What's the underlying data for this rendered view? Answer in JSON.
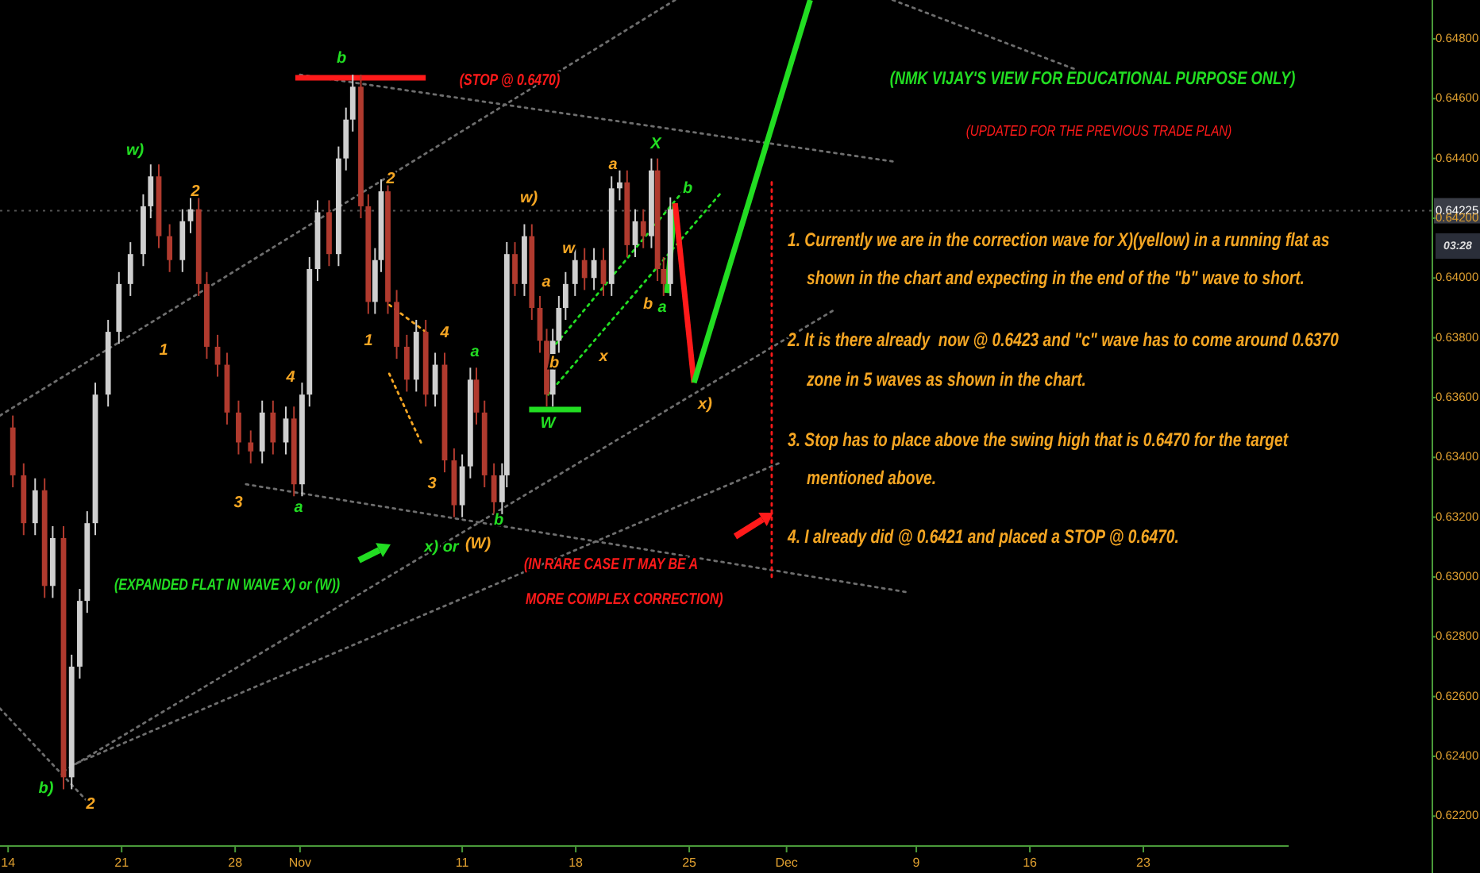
{
  "chart_data": {
    "type": "candlestick",
    "title": "(NMK VIJAY'S VIEW FOR EDUCATIONAL PURPOSE ONLY)",
    "subtitle": "(UPDATED FOR THE PREVIOUS TRADE PLAN)",
    "x": [
      "--10-14T07:00",
      "--10-14T23:00",
      "--10-15T16:00",
      "--10-16T06:00",
      "--10-16T18:00",
      "--10-17T10:00",
      "--10-17T22:00",
      "--10-18T10:00",
      "--10-18T21:00",
      "--10-19T09:00",
      "--10-20T04:00",
      "--10-20T20:00",
      "--10-21T13:00",
      "--10-22T08:00",
      "--10-22T19:00",
      "--10-23T07:00",
      "--10-23T23:00",
      "--10-24T18:00",
      "--10-25T06:00",
      "--10-25T18:00",
      "--10-26T06:00",
      "--10-26T22:00",
      "--10-27T12:00",
      "--10-28T05:00",
      "--10-28T23:00",
      "--10-29T16:00",
      "--10-30T08:00",
      "--10-31T03:00",
      "--10-31T15:00",
      "--11-01T03:00",
      "--11-01T14:00",
      "--11-02T02:00",
      "--11-02T19:00",
      "--11-03T09:00",
      "--11-03T20:00",
      "--11-04T06:00",
      "--11-04T18:00",
      "--11-05T05:00",
      "--11-05T15:00",
      "--11-06T00:00",
      "--11-06T10:00",
      "--11-06T23:00",
      "--11-07T14:00",
      "--11-08T04:00",
      "--11-08T18:00",
      "--11-09T08:00",
      "--11-09T22:00",
      "--11-10T12:00",
      "--11-11T00:00",
      "--11-11T12:00",
      "--11-11T21:00",
      "--11-12T09:00",
      "--11-12T23:00",
      "--11-13T11:00",
      "--11-13T18:00",
      "--11-14T06:00",
      "--11-14T20:00",
      "--11-15T07:00",
      "--11-15T19:00",
      "--11-16T05:00",
      "--11-16T14:00",
      "--11-16T23:00",
      "--11-17T09:00",
      "--11-17T23:00",
      "--11-18T13:00",
      "--11-19T03:00",
      "--11-19T17:00",
      "--11-20T05:00",
      "--11-20T17:00",
      "--11-21T04:00",
      "--11-21T16:00",
      "--11-22T04:00",
      "--11-22T16:00",
      "--11-23T01:00",
      "--11-23T10:00",
      "--11-23T20:00"
    ],
    "ohlc": [
      [
        0.635,
        0.6354,
        0.633,
        0.6334
      ],
      [
        0.6334,
        0.6338,
        0.6314,
        0.6318
      ],
      [
        0.6318,
        0.6333,
        0.6314,
        0.6329
      ],
      [
        0.6329,
        0.6333,
        0.6293,
        0.6297
      ],
      [
        0.6297,
        0.6317,
        0.6293,
        0.6313
      ],
      [
        0.6313,
        0.6317,
        0.6229,
        0.6233
      ],
      [
        0.6233,
        0.6274,
        0.6229,
        0.627
      ],
      [
        0.627,
        0.6296,
        0.6266,
        0.6292
      ],
      [
        0.6292,
        0.6322,
        0.6288,
        0.6318
      ],
      [
        0.6318,
        0.6365,
        0.6314,
        0.6361
      ],
      [
        0.6361,
        0.6386,
        0.6357,
        0.6382
      ],
      [
        0.6382,
        0.6402,
        0.6378,
        0.6398
      ],
      [
        0.6398,
        0.6412,
        0.6394,
        0.6408
      ],
      [
        0.6408,
        0.6428,
        0.6404,
        0.6424
      ],
      [
        0.6424,
        0.6438,
        0.642,
        0.6434
      ],
      [
        0.6434,
        0.6438,
        0.641,
        0.6414
      ],
      [
        0.6414,
        0.6418,
        0.6402,
        0.6406
      ],
      [
        0.6406,
        0.6423,
        0.6402,
        0.6419
      ],
      [
        0.6419,
        0.6427,
        0.6415,
        0.6423
      ],
      [
        0.6423,
        0.6427,
        0.6394,
        0.6398
      ],
      [
        0.6398,
        0.6402,
        0.6373,
        0.6377
      ],
      [
        0.6377,
        0.6381,
        0.6367,
        0.6371
      ],
      [
        0.6371,
        0.6375,
        0.6351,
        0.6355
      ],
      [
        0.6355,
        0.6359,
        0.6341,
        0.6345
      ],
      [
        0.6345,
        0.6349,
        0.6338,
        0.6342
      ],
      [
        0.6342,
        0.6359,
        0.6338,
        0.6355
      ],
      [
        0.6355,
        0.6359,
        0.6341,
        0.6345
      ],
      [
        0.6345,
        0.6357,
        0.6341,
        0.6353
      ],
      [
        0.6353,
        0.6357,
        0.6327,
        0.6331
      ],
      [
        0.6331,
        0.6365,
        0.6327,
        0.6361
      ],
      [
        0.6361,
        0.6407,
        0.6357,
        0.6403
      ],
      [
        0.6403,
        0.6426,
        0.6399,
        0.6422
      ],
      [
        0.6422,
        0.6426,
        0.6404,
        0.6408
      ],
      [
        0.6408,
        0.6444,
        0.6404,
        0.644
      ],
      [
        0.644,
        0.6457,
        0.6436,
        0.6453
      ],
      [
        0.6453,
        0.6468,
        0.6449,
        0.6464
      ],
      [
        0.6464,
        0.6468,
        0.642,
        0.6424
      ],
      [
        0.6424,
        0.6428,
        0.6388,
        0.6392
      ],
      [
        0.6392,
        0.641,
        0.6388,
        0.6406
      ],
      [
        0.6406,
        0.6433,
        0.6402,
        0.6429
      ],
      [
        0.6429,
        0.6433,
        0.6388,
        0.6392
      ],
      [
        0.6392,
        0.6396,
        0.6373,
        0.6377
      ],
      [
        0.6377,
        0.6381,
        0.6362,
        0.6366
      ],
      [
        0.6366,
        0.6386,
        0.6362,
        0.6382
      ],
      [
        0.6382,
        0.6386,
        0.6357,
        0.6361
      ],
      [
        0.6361,
        0.6375,
        0.6357,
        0.6371
      ],
      [
        0.6371,
        0.6375,
        0.6335,
        0.6339
      ],
      [
        0.6339,
        0.6343,
        0.632,
        0.6324
      ],
      [
        0.6324,
        0.6341,
        0.632,
        0.6337
      ],
      [
        0.6337,
        0.637,
        0.6333,
        0.6366
      ],
      [
        0.6366,
        0.637,
        0.6351,
        0.6355
      ],
      [
        0.6355,
        0.6359,
        0.633,
        0.6334
      ],
      [
        0.6334,
        0.6338,
        0.6321,
        0.6325
      ],
      [
        0.6325,
        0.6338,
        0.6321,
        0.6334
      ],
      [
        0.6334,
        0.6412,
        0.633,
        0.6408
      ],
      [
        0.6408,
        0.6412,
        0.6394,
        0.6398
      ],
      [
        0.6398,
        0.6418,
        0.6394,
        0.6414
      ],
      [
        0.6414,
        0.6418,
        0.6386,
        0.639
      ],
      [
        0.639,
        0.6394,
        0.6375,
        0.6379
      ],
      [
        0.6379,
        0.6383,
        0.6357,
        0.6361
      ],
      [
        0.6361,
        0.6383,
        0.6357,
        0.6379
      ],
      [
        0.6379,
        0.6394,
        0.6375,
        0.639
      ],
      [
        0.639,
        0.6402,
        0.6386,
        0.6398
      ],
      [
        0.6398,
        0.641,
        0.6394,
        0.6406
      ],
      [
        0.6406,
        0.641,
        0.6396,
        0.64
      ],
      [
        0.64,
        0.641,
        0.6396,
        0.6406
      ],
      [
        0.6406,
        0.641,
        0.6394,
        0.6398
      ],
      [
        0.6398,
        0.6434,
        0.6394,
        0.643
      ],
      [
        0.643,
        0.6436,
        0.6426,
        0.6432
      ],
      [
        0.6432,
        0.6436,
        0.6407,
        0.6411
      ],
      [
        0.6411,
        0.6423,
        0.6407,
        0.6419
      ],
      [
        0.6419,
        0.6423,
        0.641,
        0.6414
      ],
      [
        0.6414,
        0.644,
        0.641,
        0.6436
      ],
      [
        0.6436,
        0.644,
        0.6399,
        0.6403
      ],
      [
        0.6403,
        0.6407,
        0.6394,
        0.6398
      ],
      [
        0.6398,
        0.6427,
        0.6394,
        0.6423
      ]
    ],
    "series": [
      {
        "type": "line",
        "color": "#6e6e6e",
        "line_style": "dotted",
        "x": [
          "--10-13T12:00",
          "--11-24T03:00"
        ],
        "values": [
          0.6354,
          0.6493
        ]
      },
      {
        "type": "line",
        "color": "#6e6e6e",
        "line_style": "dotted",
        "x": [
          "--11-01T00:00",
          "--12-07T13:00"
        ],
        "values": [
          0.6468,
          0.6439
        ]
      },
      {
        "type": "line",
        "color": "#6e6e6e",
        "line_style": "dotted",
        "x": [
          "--12-07T13:00",
          "--12-18T17:00"
        ],
        "values": [
          0.6493,
          0.647
        ]
      },
      {
        "type": "line",
        "color": "#6e6e6e",
        "line_style": "dotted",
        "x": [
          "--10-17T10:00",
          "--12-03T20:00"
        ],
        "values": [
          0.6235,
          0.6389
        ]
      },
      {
        "type": "line",
        "color": "#6e6e6e",
        "line_style": "dotted",
        "x": [
          "--10-17T22:00",
          "--11-30T12:00"
        ],
        "values": [
          0.6237,
          0.6338
        ]
      },
      {
        "type": "line",
        "color": "#6e6e6e",
        "line_style": "dotted",
        "x": [
          "--10-28T16:00",
          "--12-08T08:00"
        ],
        "values": [
          0.6331,
          0.6295
        ]
      },
      {
        "type": "line",
        "color": "#6e6e6e",
        "line_style": "dotted",
        "x": [
          "--10-13T12:00",
          "--10-18T21:00"
        ],
        "values": [
          0.6256,
          0.6225
        ]
      },
      {
        "type": "line",
        "color": "#22dd22",
        "line_style": "dotted",
        "x": [
          "--11-16T07:00",
          "--11-26T21:00"
        ],
        "values": [
          0.6361,
          0.6428
        ]
      },
      {
        "type": "line",
        "color": "#22dd22",
        "line_style": "dotted",
        "x": [
          "--11-16T19:00",
          "--11-24T22:00"
        ],
        "values": [
          0.6378,
          0.6431
        ]
      },
      {
        "type": "line",
        "color": "#f5a623",
        "line_style": "dotted",
        "x": [
          "--11-06T12:00",
          "--11-08T18:00"
        ],
        "values": [
          0.6391,
          0.6382
        ]
      },
      {
        "type": "line",
        "color": "#f5a623",
        "line_style": "dotted",
        "x": [
          "--11-06T12:00",
          "--11-08T11:00"
        ],
        "values": [
          0.6368,
          0.6345
        ]
      },
      {
        "type": "line",
        "color": "#ff1a1a",
        "line_style": "dotted",
        "x": [
          "--11-30T02:00",
          "--11-30T02:00"
        ],
        "values": [
          0.6432,
          0.63
        ]
      },
      {
        "type": "line",
        "color": "#ff1a1a",
        "line_style": "solid",
        "x": [
          "--10-31T17:00",
          "--11-08T18:00"
        ],
        "values": [
          0.6467,
          0.6467
        ]
      },
      {
        "type": "line",
        "color": "#22dd22",
        "line_style": "solid",
        "x": [
          "--11-15T03:00",
          "--11-18T08:00"
        ],
        "values": [
          0.6356,
          0.6356
        ]
      },
      {
        "type": "line",
        "color": "#22dd22",
        "line_style": "solid",
        "x": [
          "--11-23T15:00",
          "--11-24T03:00"
        ],
        "values": [
          0.6395,
          0.6425
        ]
      },
      {
        "type": "line",
        "color": "#ff1a1a",
        "line_style": "solid",
        "x": [
          "--11-24T03:00",
          "--11-25T07:00"
        ],
        "values": [
          0.6425,
          0.6365
        ]
      },
      {
        "type": "line",
        "color": "#22dd22",
        "line_style": "solid",
        "x": [
          "--11-25T07:00",
          "--12-02T11:00"
        ],
        "values": [
          0.6365,
          0.6493
        ]
      }
    ],
    "xlim": [
      "--10-13T12:00",
      "--12-31T23:00"
    ],
    "xticks": [
      {
        "value": "--10-14",
        "label": "14"
      },
      {
        "value": "--10-21",
        "label": "21"
      },
      {
        "value": "--10-28",
        "label": "28"
      },
      {
        "value": "--11-01",
        "label": "Nov"
      },
      {
        "value": "--11-11",
        "label": "11"
      },
      {
        "value": "--11-18",
        "label": "18"
      },
      {
        "value": "--11-25",
        "label": "25"
      },
      {
        "value": "--12-01",
        "label": "Dec"
      },
      {
        "value": "--12-09",
        "label": "9"
      },
      {
        "value": "--12-16",
        "label": "16"
      },
      {
        "value": "--12-23",
        "label": "23"
      }
    ],
    "ylim": [
      0.621,
      0.6493
    ],
    "yticks": [
      {
        "value": 0.622,
        "label": "0.62200"
      },
      {
        "value": 0.624,
        "label": "0.62400"
      },
      {
        "value": 0.626,
        "label": "0.62600"
      },
      {
        "value": 0.628,
        "label": "0.62800"
      },
      {
        "value": 0.63,
        "label": "0.63000"
      },
      {
        "value": 0.632,
        "label": "0.63200"
      },
      {
        "value": 0.634,
        "label": "0.63400"
      },
      {
        "value": 0.636,
        "label": "0.63600"
      },
      {
        "value": 0.638,
        "label": "0.63800"
      },
      {
        "value": 0.64,
        "label": "0.64000"
      },
      {
        "value": 0.642,
        "label": "0.64200"
      },
      {
        "value": 0.644,
        "label": "0.64400"
      },
      {
        "value": 0.646,
        "label": "0.64600"
      },
      {
        "value": 0.648,
        "label": "0.64800"
      }
    ],
    "ref_lines": [
      {
        "axis": "y",
        "value": 0.64225,
        "label": "0.64225",
        "color": "#555555",
        "line_style": "dotted"
      }
    ],
    "annotations": [
      "b",
      "w)",
      "2",
      "1",
      "4",
      "3",
      "a",
      "2",
      "1",
      "4",
      "a",
      "3",
      "b",
      "x) or",
      "(W)",
      "w)",
      "w",
      "a",
      "b",
      "x",
      "a",
      "X",
      "b",
      "b",
      "a",
      "x)",
      "W",
      "b)",
      "2",
      "(STOP @ 0.6470)",
      "(EXPANDED FLAT IN WAVE X) or (W))",
      "(IN RARE CASE IT MAY BE A",
      "MORE COMPLEX CORRECTION)",
      "1. Currently we are in the correction wave for X)(yellow) in a running flat as",
      "shown in the chart and expecting in the end of the \"b\" wave to short.",
      "2. It is there already  now @ 0.6423 and \"c\" wave has to come around 0.6370",
      "zone in 5 waves as shown in the chart.",
      "3. Stop has to place above the swing high that is 0.6470 for the target",
      "mentioned above.",
      "4. I already did @ 0.6421 and placed a STOP @ 0.6470.",
      "03:28"
    ]
  }
}
